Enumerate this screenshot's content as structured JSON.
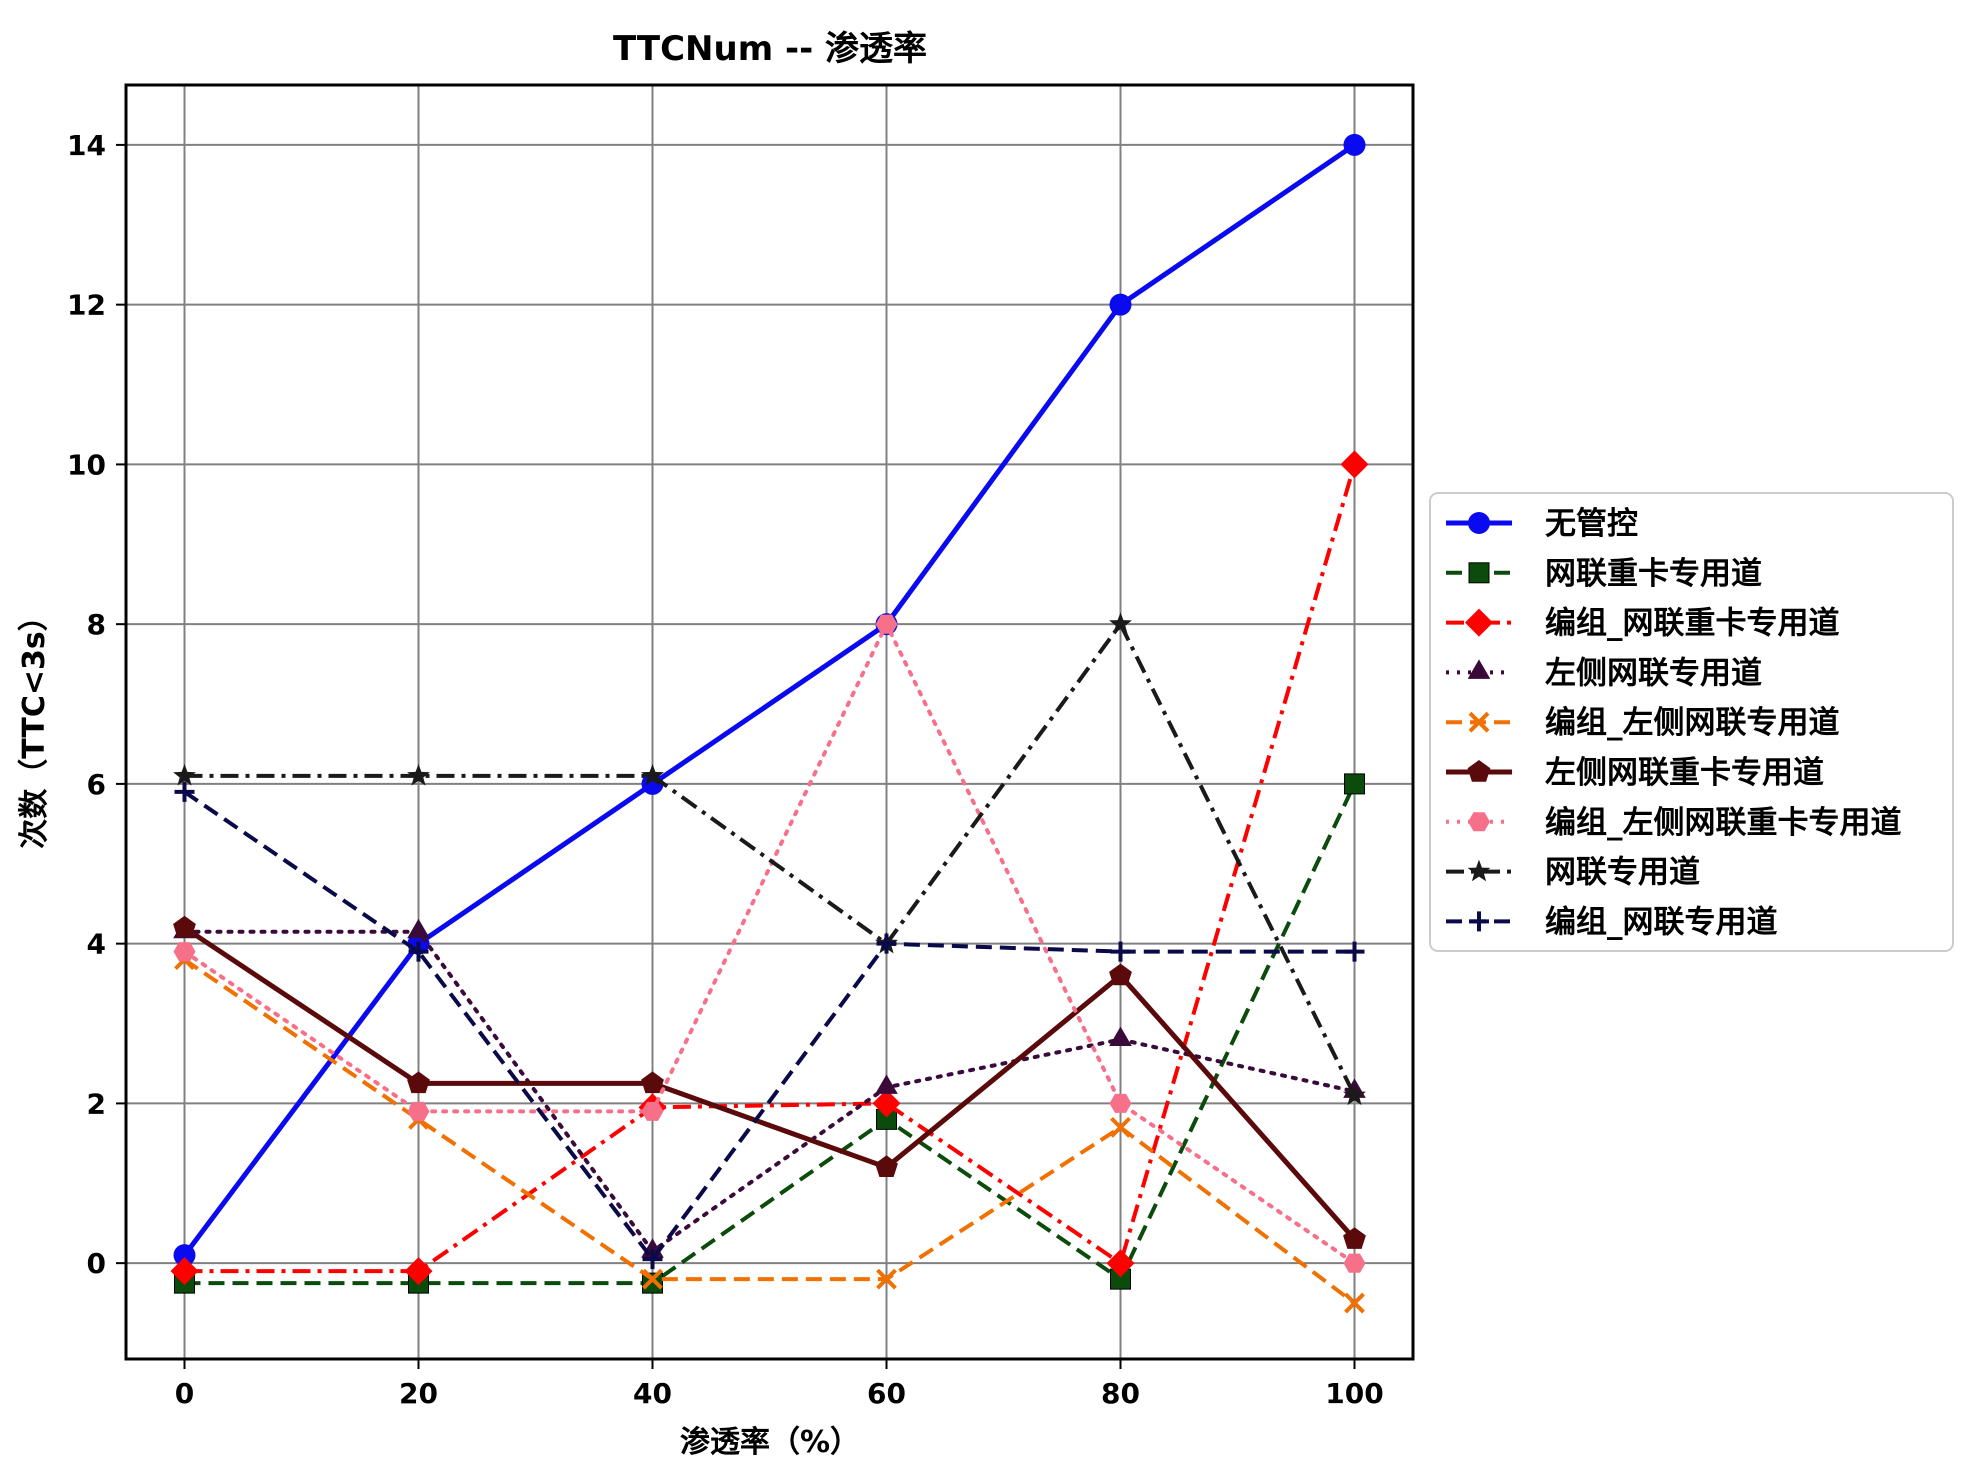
{
  "chart_data": {
    "type": "line",
    "title": "TTCNum -- 渗透率",
    "xlabel": "渗透率（%）",
    "ylabel": "次数（TTC<3s）",
    "x": [
      0,
      20,
      40,
      60,
      80,
      100
    ],
    "xticks": [
      "0",
      "20",
      "40",
      "60",
      "80",
      "100"
    ],
    "yticks": [
      "0",
      "2",
      "4",
      "6",
      "8",
      "10",
      "12",
      "14"
    ],
    "xlim": [
      -5,
      105
    ],
    "ylim": [
      -1.2,
      14.75
    ],
    "grid": true,
    "legend_position": "right, outside plot",
    "series": [
      {
        "name": "无管控",
        "values": [
          0.1,
          4.0,
          6.0,
          8.0,
          12.0,
          14.0
        ],
        "color": "#0a0af0",
        "dash": "solid",
        "marker": "circle"
      },
      {
        "name": "网联重卡专用道",
        "values": [
          -0.25,
          -0.25,
          -0.25,
          1.8,
          -0.2,
          6.0
        ],
        "color": "#0b4b0b",
        "dash": "dashed",
        "marker": "square"
      },
      {
        "name": "编组_网联重卡专用道",
        "values": [
          -0.1,
          -0.1,
          1.95,
          2.0,
          0.0,
          10.0
        ],
        "color": "#ff0000",
        "dash": "dashdot",
        "marker": "diamond"
      },
      {
        "name": "左侧网联专用道",
        "values": [
          4.15,
          4.15,
          0.15,
          2.2,
          2.8,
          2.15
        ],
        "color": "#3a0a3a",
        "dash": "dotted",
        "marker": "triangle"
      },
      {
        "name": "编组_左侧网联专用道",
        "values": [
          3.8,
          1.8,
          -0.2,
          -0.2,
          1.7,
          -0.5
        ],
        "color": "#f07000",
        "dash": "dashed",
        "marker": "x"
      },
      {
        "name": "左侧网联重卡专用道",
        "values": [
          4.2,
          2.25,
          2.25,
          1.2,
          3.6,
          0.3
        ],
        "color": "#5a0a0a",
        "dash": "solid",
        "marker": "pentagon"
      },
      {
        "name": "编组_左侧网联重卡专用道",
        "values": [
          3.9,
          1.9,
          1.9,
          8.0,
          2.0,
          0.0
        ],
        "color": "#f7708a",
        "dash": "dotted",
        "marker": "hexagon"
      },
      {
        "name": "网联专用道",
        "values": [
          6.1,
          6.1,
          6.1,
          4.0,
          8.0,
          2.1
        ],
        "color": "#1a1a1a",
        "dash": "dashdot",
        "marker": "star"
      },
      {
        "name": "编组_网联专用道",
        "values": [
          5.9,
          3.9,
          0.05,
          4.0,
          3.9,
          3.9
        ],
        "color": "#0a0a4a",
        "dash": "dashed",
        "marker": "plus"
      }
    ]
  }
}
